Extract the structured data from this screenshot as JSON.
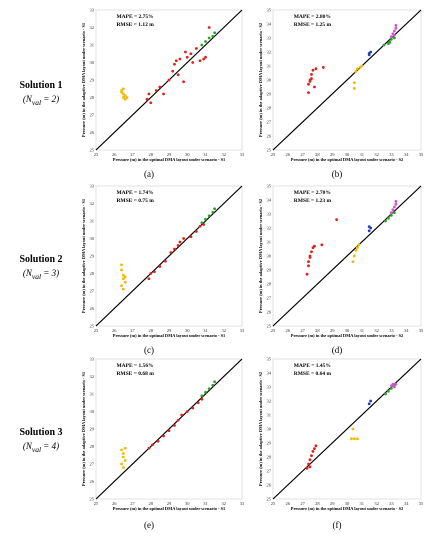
{
  "rows": [
    {
      "label": "Solution 1",
      "nval": "(N",
      "nval_sub": "val",
      "nval_val": " = 2)"
    },
    {
      "label": "Solution 2",
      "nval": "(N",
      "nval_sub": "val",
      "nval_val": " = 3)"
    },
    {
      "label": "Solution 3",
      "nval": "(N",
      "nval_sub": "val",
      "nval_val": " = 4)"
    }
  ],
  "colors": {
    "yellow": "#f5b800",
    "red": "#e0201c",
    "green": "#2ca02c",
    "blue": "#1f3fbf",
    "magenta": "#d94fd6"
  },
  "chart_data": [
    {
      "type": "scatter",
      "caption": "(a)",
      "mape": "MAPE = 2.75%",
      "rmse": "RMSE = 1.12 m",
      "xlabel": "Pressure (m) in the optimal DMA layout under scenario - S1",
      "ylabel": "Pressure (m) in the adaptive DMA layout under scenario - S1",
      "xlim": [
        25,
        33
      ],
      "ylim": [
        25,
        33
      ],
      "xticks": [
        "25",
        "26",
        "27",
        "28",
        "29",
        "30",
        "31",
        "32",
        "33"
      ],
      "yticks": [
        "25",
        "26",
        "27",
        "28",
        "29",
        "30",
        "31",
        "32",
        "33"
      ],
      "series": [
        {
          "color": "yellow",
          "points": [
            [
              26.4,
              28.4
            ],
            [
              26.5,
              28.2
            ],
            [
              26.5,
              28.0
            ],
            [
              26.6,
              28.1
            ],
            [
              26.4,
              28.3
            ],
            [
              26.7,
              28.0
            ],
            [
              26.5,
              28.5
            ],
            [
              26.6,
              27.9
            ]
          ]
        },
        {
          "color": "red",
          "points": [
            [
              27.8,
              27.9
            ],
            [
              27.9,
              28.2
            ],
            [
              28.0,
              27.7
            ],
            [
              28.3,
              28.4
            ],
            [
              28.5,
              28.6
            ],
            [
              28.7,
              28.2
            ],
            [
              29.0,
              29.0
            ],
            [
              29.2,
              29.5
            ],
            [
              29.3,
              29.9
            ],
            [
              29.4,
              30.1
            ],
            [
              29.6,
              30.2
            ],
            [
              29.5,
              29.3
            ],
            [
              29.8,
              28.9
            ],
            [
              30.0,
              30.3
            ],
            [
              30.3,
              30.0
            ],
            [
              30.5,
              30.8
            ],
            [
              30.7,
              30.1
            ],
            [
              30.9,
              30.2
            ],
            [
              31.0,
              30.3
            ],
            [
              31.2,
              32.0
            ],
            [
              30.2,
              30.5
            ],
            [
              29.9,
              30.6
            ]
          ]
        },
        {
          "color": "green",
          "points": [
            [
              30.8,
              31.0
            ],
            [
              31.0,
              31.2
            ],
            [
              31.2,
              31.4
            ],
            [
              31.4,
              31.5
            ],
            [
              31.5,
              31.7
            ]
          ]
        }
      ]
    },
    {
      "type": "scatter",
      "caption": "(b)",
      "mape": "MAPE = 2.80%",
      "rmse": "RMSE = 1.25 m",
      "xlabel": "Pressure (m) in the optimal DMA layout under scenario - S2",
      "ylabel": "Pressure (m) in the adaptive DMA layout under scenario - S2",
      "xlim": [
        25,
        35
      ],
      "ylim": [
        25,
        35
      ],
      "xticks": [
        "25",
        "26",
        "27",
        "28",
        "29",
        "30",
        "31",
        "32",
        "33",
        "34",
        "35"
      ],
      "yticks": [
        "25",
        "26",
        "27",
        "28",
        "29",
        "30",
        "31",
        "32",
        "33",
        "34",
        "35"
      ],
      "series": [
        {
          "color": "red",
          "points": [
            [
              27.4,
              29.1
            ],
            [
              27.4,
              29.7
            ],
            [
              27.5,
              30.0
            ],
            [
              27.6,
              30.4
            ],
            [
              27.7,
              30.7
            ],
            [
              27.9,
              30.8
            ],
            [
              28.4,
              30.9
            ],
            [
              27.5,
              29.9
            ],
            [
              27.8,
              29.5
            ],
            [
              27.6,
              30.1
            ]
          ]
        },
        {
          "color": "yellow",
          "points": [
            [
              30.5,
              29.4
            ],
            [
              30.5,
              29.8
            ],
            [
              30.6,
              30.6
            ],
            [
              30.7,
              30.8
            ],
            [
              30.9,
              30.9
            ],
            [
              31.0,
              31.0
            ]
          ]
        },
        {
          "color": "blue",
          "points": [
            [
              31.5,
              31.8
            ],
            [
              31.6,
              32.0
            ],
            [
              31.5,
              31.9
            ]
          ]
        },
        {
          "color": "green",
          "points": [
            [
              32.5,
              32.5
            ],
            [
              32.8,
              32.6
            ],
            [
              33.0,
              32.9
            ],
            [
              33.2,
              33.0
            ],
            [
              32.9,
              32.7
            ]
          ]
        },
        {
          "color": "magenta",
          "points": [
            [
              33.0,
              33.1
            ],
            [
              33.1,
              33.3
            ],
            [
              33.2,
              33.5
            ],
            [
              33.3,
              33.7
            ],
            [
              33.3,
              33.9
            ],
            [
              33.2,
              33.2
            ]
          ]
        }
      ]
    },
    {
      "type": "scatter",
      "caption": "(c)",
      "mape": "MAPE = 1.74%",
      "rmse": "RMSE = 0.75 m",
      "xlabel": "Pressure (m) in the optimal DMA layout under scenario - S1",
      "ylabel": "Pressure (m) in the adaptive DMA layout under scenario - S1",
      "xlim": [
        25,
        33
      ],
      "ylim": [
        25,
        33
      ],
      "xticks": [
        "25",
        "26",
        "27",
        "28",
        "29",
        "30",
        "31",
        "32",
        "33"
      ],
      "yticks": [
        "25",
        "26",
        "27",
        "28",
        "29",
        "30",
        "31",
        "32",
        "33"
      ],
      "series": [
        {
          "color": "yellow",
          "points": [
            [
              26.4,
              28.5
            ],
            [
              26.4,
              28.2
            ],
            [
              26.5,
              27.9
            ],
            [
              26.5,
              27.7
            ],
            [
              26.6,
              27.5
            ],
            [
              26.4,
              27.3
            ],
            [
              26.5,
              27.1
            ],
            [
              26.6,
              27.8
            ]
          ]
        },
        {
          "color": "red",
          "points": [
            [
              27.9,
              27.7
            ],
            [
              28.0,
              28.0
            ],
            [
              28.2,
              28.1
            ],
            [
              28.5,
              28.4
            ],
            [
              28.8,
              28.7
            ],
            [
              29.1,
              29.2
            ],
            [
              29.3,
              29.4
            ],
            [
              29.5,
              29.6
            ],
            [
              29.6,
              29.8
            ],
            [
              29.8,
              30.0
            ],
            [
              30.2,
              30.1
            ],
            [
              30.5,
              30.4
            ],
            [
              30.7,
              30.7
            ],
            [
              30.9,
              30.8
            ]
          ]
        },
        {
          "color": "green",
          "points": [
            [
              30.8,
              30.9
            ],
            [
              31.0,
              31.1
            ],
            [
              31.2,
              31.3
            ],
            [
              31.4,
              31.5
            ],
            [
              31.5,
              31.7
            ]
          ]
        }
      ]
    },
    {
      "type": "scatter",
      "caption": "(d)",
      "mape": "MAPE = 2.70%",
      "rmse": "RMSE = 1.23 m",
      "xlabel": "Pressure (m) in the optimal DMA layout under scenario - S2",
      "ylabel": "Pressure (m) in the adaptive DMA layout under scenario - S2",
      "xlim": [
        25,
        35
      ],
      "ylim": [
        25,
        35
      ],
      "xticks": [
        "25",
        "26",
        "27",
        "28",
        "29",
        "30",
        "31",
        "32",
        "33",
        "34",
        "35"
      ],
      "yticks": [
        "25",
        "26",
        "27",
        "28",
        "29",
        "30",
        "31",
        "32",
        "33",
        "34",
        "35"
      ],
      "series": [
        {
          "color": "red",
          "points": [
            [
              27.3,
              28.7
            ],
            [
              27.4,
              29.3
            ],
            [
              27.4,
              29.6
            ],
            [
              27.5,
              30.0
            ],
            [
              27.6,
              30.3
            ],
            [
              27.7,
              30.6
            ],
            [
              27.8,
              30.7
            ],
            [
              28.3,
              30.8
            ],
            [
              29.3,
              32.6
            ],
            [
              27.5,
              29.9
            ]
          ]
        },
        {
          "color": "yellow",
          "points": [
            [
              30.4,
              29.6
            ],
            [
              30.5,
              30.0
            ],
            [
              30.6,
              30.4
            ],
            [
              30.7,
              30.6
            ],
            [
              30.8,
              30.8
            ]
          ]
        },
        {
          "color": "blue",
          "points": [
            [
              31.5,
              31.8
            ],
            [
              31.6,
              32.0
            ],
            [
              31.5,
              32.1
            ]
          ]
        },
        {
          "color": "green",
          "points": [
            [
              32.6,
              32.5
            ],
            [
              32.8,
              32.7
            ],
            [
              33.0,
              32.9
            ],
            [
              33.2,
              33.1
            ]
          ]
        },
        {
          "color": "magenta",
          "points": [
            [
              33.0,
              33.1
            ],
            [
              33.1,
              33.3
            ],
            [
              33.2,
              33.5
            ],
            [
              33.3,
              33.7
            ],
            [
              33.3,
              33.9
            ]
          ]
        }
      ]
    },
    {
      "type": "scatter",
      "caption": "(e)",
      "mape": "MAPE = 1.56%",
      "rmse": "RMSE = 0.68 m",
      "xlabel": "Pressure (m) in the optimal DMA layout under scenario - S1",
      "ylabel": "Pressure (m) in the adaptive DMA layout under scenario - S1",
      "xlim": [
        25,
        33
      ],
      "ylim": [
        25,
        33
      ],
      "xticks": [
        "25",
        "26",
        "27",
        "28",
        "29",
        "30",
        "31",
        "32",
        "33"
      ],
      "yticks": [
        "25",
        "26",
        "27",
        "28",
        "29",
        "30",
        "31",
        "32",
        "33"
      ],
      "series": [
        {
          "color": "yellow",
          "points": [
            [
              26.4,
              27.8
            ],
            [
              26.5,
              27.6
            ],
            [
              26.5,
              27.4
            ],
            [
              26.6,
              27.2
            ],
            [
              26.4,
              27.0
            ],
            [
              26.5,
              26.8
            ],
            [
              26.6,
              27.9
            ]
          ]
        },
        {
          "color": "red",
          "points": [
            [
              27.9,
              27.9
            ],
            [
              28.1,
              28.1
            ],
            [
              28.4,
              28.3
            ],
            [
              28.7,
              28.6
            ],
            [
              29.0,
              28.9
            ],
            [
              29.3,
              29.2
            ],
            [
              29.5,
              29.5
            ],
            [
              29.7,
              29.8
            ],
            [
              30.0,
              30.0
            ],
            [
              30.3,
              30.2
            ],
            [
              30.6,
              30.5
            ],
            [
              30.8,
              30.7
            ]
          ]
        },
        {
          "color": "green",
          "points": [
            [
              30.8,
              30.9
            ],
            [
              31.0,
              31.1
            ],
            [
              31.2,
              31.3
            ],
            [
              31.4,
              31.5
            ],
            [
              31.5,
              31.7
            ]
          ]
        }
      ]
    },
    {
      "type": "scatter",
      "caption": "(f)",
      "mape": "MAPE = 1.45%",
      "rmse": "RMSE = 0.64 m",
      "xlabel": "Pressure (m) in the optimal DMA layout under scenario - S2",
      "ylabel": "Pressure (m) in the adaptive DMA layout under scenario - S2",
      "xlim": [
        25,
        35
      ],
      "ylim": [
        25,
        35
      ],
      "xticks": [
        "25",
        "26",
        "27",
        "28",
        "29",
        "30",
        "31",
        "32",
        "33",
        "34",
        "35"
      ],
      "yticks": [
        "25",
        "26",
        "27",
        "28",
        "29",
        "30",
        "31",
        "32",
        "33",
        "34",
        "35"
      ],
      "series": [
        {
          "color": "red",
          "points": [
            [
              27.3,
              27.2
            ],
            [
              27.4,
              27.5
            ],
            [
              27.5,
              27.8
            ],
            [
              27.6,
              28.1
            ],
            [
              27.7,
              28.4
            ],
            [
              27.8,
              28.6
            ],
            [
              27.9,
              28.8
            ],
            [
              27.5,
              27.3
            ]
          ]
        },
        {
          "color": "yellow",
          "points": [
            [
              30.3,
              29.3
            ],
            [
              30.5,
              29.3
            ],
            [
              30.7,
              29.3
            ],
            [
              30.4,
              30.0
            ]
          ]
        },
        {
          "color": "blue",
          "points": [
            [
              31.5,
              31.8
            ],
            [
              31.6,
              32.0
            ]
          ]
        },
        {
          "color": "green",
          "points": [
            [
              32.6,
              32.5
            ],
            [
              32.8,
              32.7
            ],
            [
              33.0,
              32.9
            ],
            [
              33.2,
              33.1
            ]
          ]
        },
        {
          "color": "magenta",
          "points": [
            [
              33.0,
              33.1
            ],
            [
              33.1,
              33.2
            ],
            [
              33.2,
              33.0
            ],
            [
              33.3,
              33.2
            ]
          ]
        }
      ]
    }
  ]
}
